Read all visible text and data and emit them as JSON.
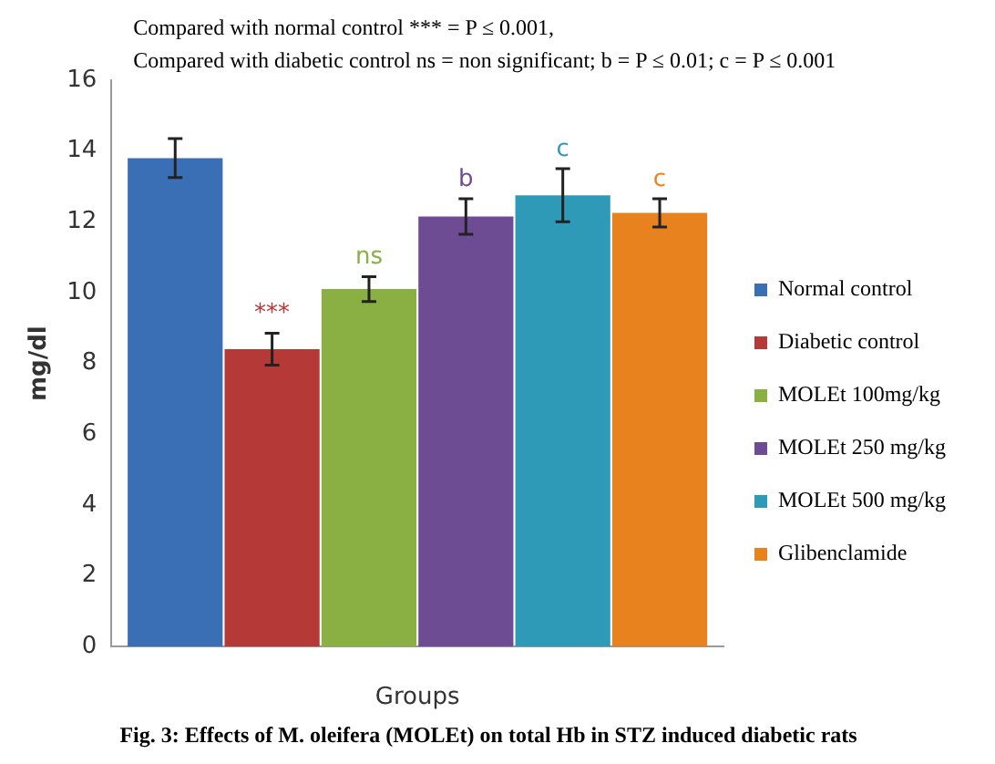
{
  "chart_data": {
    "type": "bar",
    "title": "Fig. 3: Effects of M. oleifera (MOLEt) on total Hb in STZ induced diabetic rats",
    "xlabel": "Groups",
    "ylabel": "mg/dl",
    "categories": [
      null
    ],
    "series": [
      {
        "name": "Normal control",
        "color": "#3a6fb5",
        "values": [
          13.8
        ],
        "errors": [
          0.55
        ]
      },
      {
        "name": "Diabetic control",
        "color": "#b53a37",
        "values": [
          8.4
        ],
        "errors": [
          0.45
        ],
        "value_labels": [
          "***"
        ]
      },
      {
        "name": "MOLEt 100mg/kg",
        "color": "#8ab043",
        "values": [
          10.1
        ],
        "errors": [
          0.35
        ],
        "value_labels": [
          "ns"
        ]
      },
      {
        "name": "MOLEt 250 mg/kg",
        "color": "#6e4c93",
        "values": [
          12.15
        ],
        "errors": [
          0.5
        ],
        "value_labels": [
          "b"
        ]
      },
      {
        "name": "MOLEt 500 mg/kg",
        "color": "#2f9ab8",
        "values": [
          12.75
        ],
        "errors": [
          0.75
        ],
        "value_labels": [
          "c"
        ]
      },
      {
        "name": "Glibenclamide",
        "color": "#e8821f",
        "values": [
          12.25
        ],
        "errors": [
          0.4
        ],
        "value_labels": [
          "c"
        ]
      }
    ],
    "ylim": [
      0,
      16
    ],
    "yticks": [
      0,
      2,
      4,
      6,
      8,
      10,
      12,
      14,
      16
    ],
    "grid": false,
    "legend": "right",
    "annotations": [
      "Compared with normal control *** = P ≤ 0.001,",
      "Compared with diabetic control ns = non significant; b = P ≤ 0.01; c = P ≤ 0.001"
    ]
  }
}
